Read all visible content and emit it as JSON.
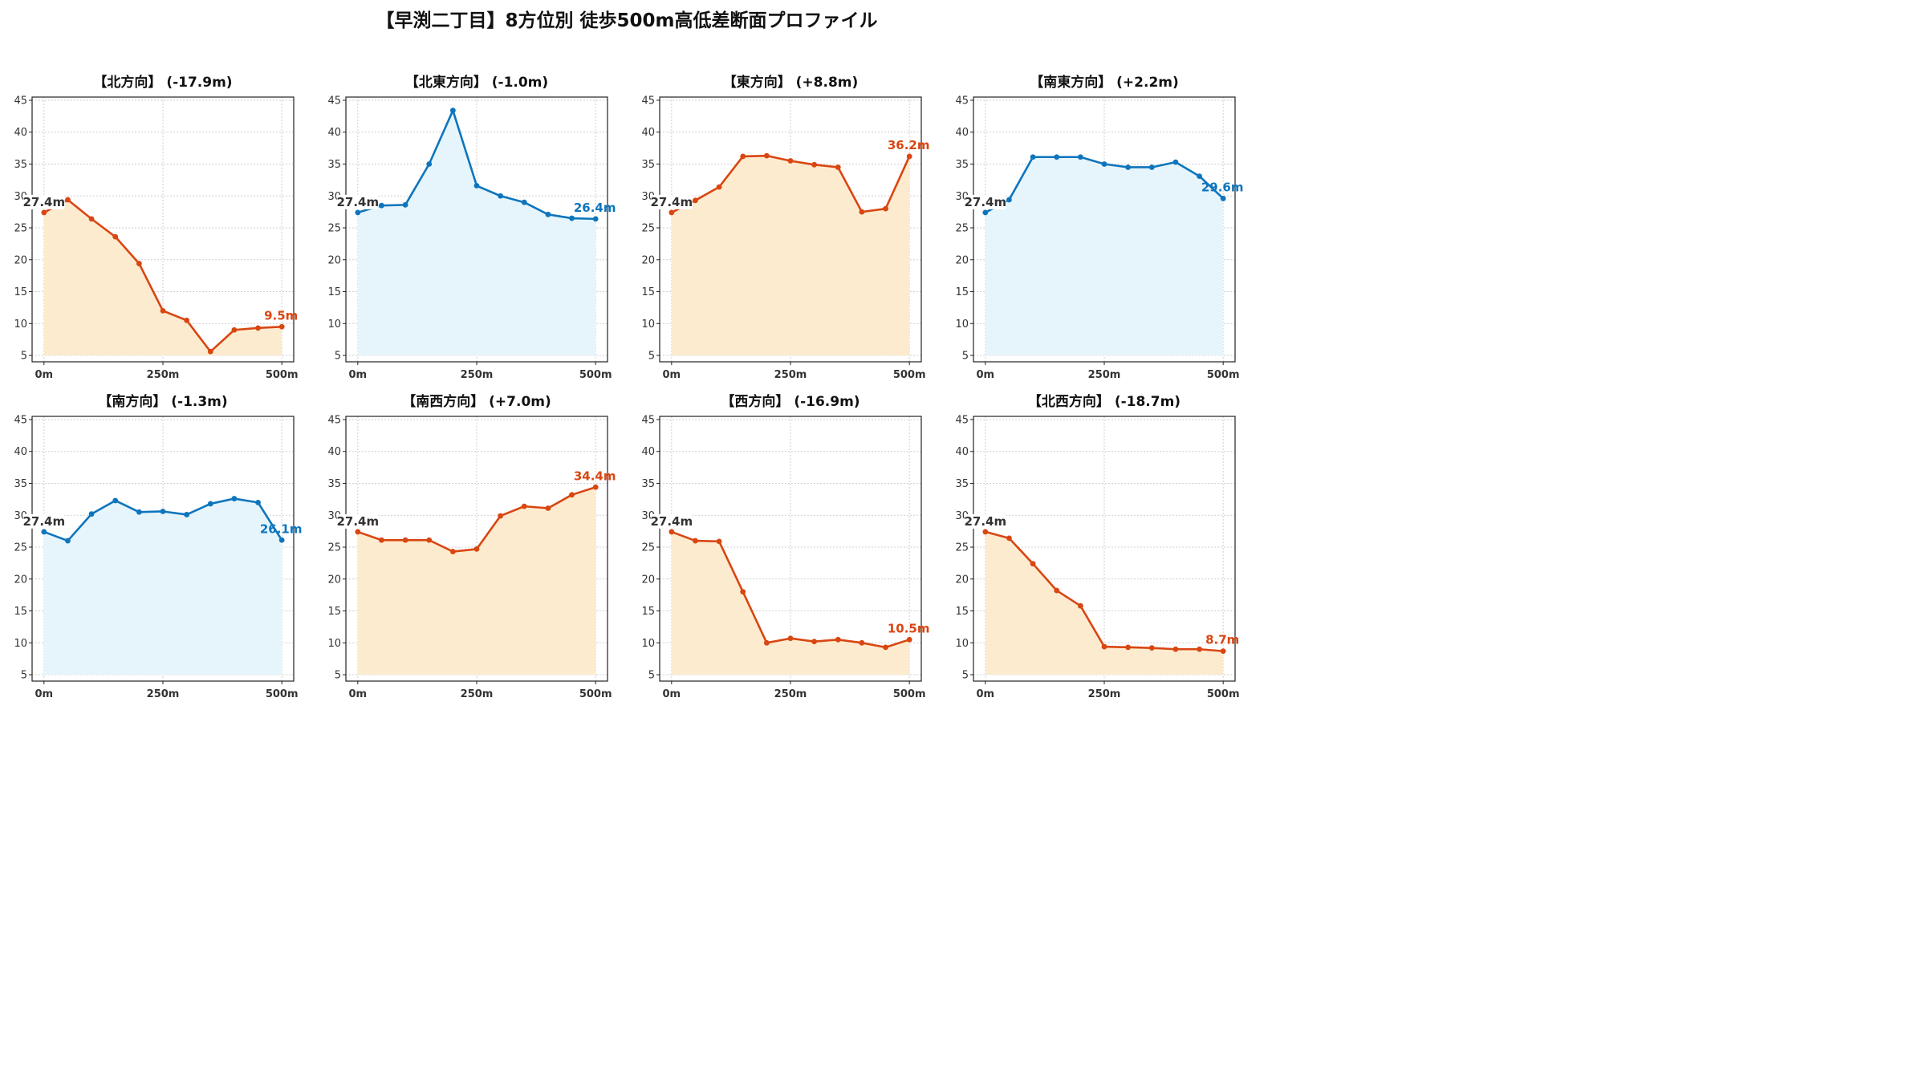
{
  "suptitle": "【早渕二丁目】8方位別 徒歩500m高低差断面プロファイル",
  "colors": {
    "down_line": "#d94612",
    "down_fill": "#fdebcf",
    "flat_line": "#0e75bd",
    "flat_fill": "#e6f5fb",
    "start_label": "#333333"
  },
  "chart_data": [
    {
      "type": "area",
      "title": "【北方向】 (-17.9m)",
      "trend": "change",
      "x": [
        0,
        50,
        100,
        150,
        200,
        250,
        300,
        350,
        400,
        450,
        500
      ],
      "values": [
        27.4,
        29.4,
        26.4,
        23.6,
        19.4,
        12.0,
        10.5,
        5.6,
        9.0,
        9.3,
        9.5
      ],
      "start_label": "27.4m",
      "end_label": "9.5m",
      "ylim": [
        4,
        45.5
      ],
      "yticks": [
        5,
        10,
        15,
        20,
        25,
        30,
        35,
        40,
        45
      ],
      "xticks": [
        0,
        250,
        500
      ],
      "xtick_labels": [
        "0m",
        "250m",
        "500m"
      ],
      "grid": true
    },
    {
      "type": "area",
      "title": "【北東方向】 (-1.0m)",
      "trend": "flat",
      "x": [
        0,
        50,
        100,
        150,
        200,
        250,
        300,
        350,
        400,
        450,
        500
      ],
      "values": [
        27.4,
        28.5,
        28.6,
        35.0,
        43.4,
        31.6,
        30.0,
        29.0,
        27.1,
        26.5,
        26.4
      ],
      "start_label": "27.4m",
      "end_label": "26.4m",
      "ylim": [
        4,
        45.5
      ],
      "yticks": [
        5,
        10,
        15,
        20,
        25,
        30,
        35,
        40,
        45
      ],
      "xticks": [
        0,
        250,
        500
      ],
      "xtick_labels": [
        "0m",
        "250m",
        "500m"
      ],
      "grid": true
    },
    {
      "type": "area",
      "title": "【東方向】 (+8.8m)",
      "trend": "change",
      "x": [
        0,
        50,
        100,
        150,
        200,
        250,
        300,
        350,
        400,
        450,
        500
      ],
      "values": [
        27.4,
        29.3,
        31.4,
        36.2,
        36.3,
        35.5,
        34.9,
        34.5,
        27.5,
        28.0,
        36.2
      ],
      "start_label": "27.4m",
      "end_label": "36.2m",
      "ylim": [
        4,
        45.5
      ],
      "yticks": [
        5,
        10,
        15,
        20,
        25,
        30,
        35,
        40,
        45
      ],
      "xticks": [
        0,
        250,
        500
      ],
      "xtick_labels": [
        "0m",
        "250m",
        "500m"
      ],
      "grid": true
    },
    {
      "type": "area",
      "title": "【南東方向】 (+2.2m)",
      "trend": "flat",
      "x": [
        0,
        50,
        100,
        150,
        200,
        250,
        300,
        350,
        400,
        450,
        500
      ],
      "values": [
        27.4,
        29.4,
        36.1,
        36.1,
        36.1,
        35.0,
        34.5,
        34.5,
        35.3,
        33.1,
        29.6
      ],
      "start_label": "27.4m",
      "end_label": "29.6m",
      "ylim": [
        4,
        45.5
      ],
      "yticks": [
        5,
        10,
        15,
        20,
        25,
        30,
        35,
        40,
        45
      ],
      "xticks": [
        0,
        250,
        500
      ],
      "xtick_labels": [
        "0m",
        "250m",
        "500m"
      ],
      "grid": true
    },
    {
      "type": "area",
      "title": "【南方向】 (-1.3m)",
      "trend": "flat",
      "x": [
        0,
        50,
        100,
        150,
        200,
        250,
        300,
        350,
        400,
        450,
        500
      ],
      "values": [
        27.4,
        26.0,
        30.2,
        32.3,
        30.5,
        30.6,
        30.1,
        31.8,
        32.6,
        32.0,
        26.1
      ],
      "start_label": "27.4m",
      "end_label": "26.1m",
      "ylim": [
        4,
        45.5
      ],
      "yticks": [
        5,
        10,
        15,
        20,
        25,
        30,
        35,
        40,
        45
      ],
      "xticks": [
        0,
        250,
        500
      ],
      "xtick_labels": [
        "0m",
        "250m",
        "500m"
      ],
      "grid": true
    },
    {
      "type": "area",
      "title": "【南西方向】 (+7.0m)",
      "trend": "change",
      "x": [
        0,
        50,
        100,
        150,
        200,
        250,
        300,
        350,
        400,
        450,
        500
      ],
      "values": [
        27.4,
        26.1,
        26.1,
        26.1,
        24.3,
        24.7,
        29.9,
        31.4,
        31.1,
        33.2,
        34.4
      ],
      "start_label": "27.4m",
      "end_label": "34.4m",
      "ylim": [
        4,
        45.5
      ],
      "yticks": [
        5,
        10,
        15,
        20,
        25,
        30,
        35,
        40,
        45
      ],
      "xticks": [
        0,
        250,
        500
      ],
      "xtick_labels": [
        "0m",
        "250m",
        "500m"
      ],
      "grid": true
    },
    {
      "type": "area",
      "title": "【西方向】 (-16.9m)",
      "trend": "change",
      "x": [
        0,
        50,
        100,
        150,
        200,
        250,
        300,
        350,
        400,
        450,
        500
      ],
      "values": [
        27.4,
        26.0,
        25.9,
        18.0,
        10.0,
        10.7,
        10.2,
        10.5,
        10.0,
        9.3,
        10.5
      ],
      "start_label": "27.4m",
      "end_label": "10.5m",
      "ylim": [
        4,
        45.5
      ],
      "yticks": [
        5,
        10,
        15,
        20,
        25,
        30,
        35,
        40,
        45
      ],
      "xticks": [
        0,
        250,
        500
      ],
      "xtick_labels": [
        "0m",
        "250m",
        "500m"
      ],
      "grid": true
    },
    {
      "type": "area",
      "title": "【北西方向】 (-18.7m)",
      "trend": "change",
      "x": [
        0,
        50,
        100,
        150,
        200,
        250,
        300,
        350,
        400,
        450,
        500
      ],
      "values": [
        27.4,
        26.4,
        22.4,
        18.2,
        15.8,
        9.4,
        9.3,
        9.2,
        9.0,
        9.0,
        8.7
      ],
      "start_label": "27.4m",
      "end_label": "8.7m",
      "ylim": [
        4,
        45.5
      ],
      "yticks": [
        5,
        10,
        15,
        20,
        25,
        30,
        35,
        40,
        45
      ],
      "xticks": [
        0,
        250,
        500
      ],
      "xtick_labels": [
        "0m",
        "250m",
        "500m"
      ],
      "grid": true
    }
  ]
}
